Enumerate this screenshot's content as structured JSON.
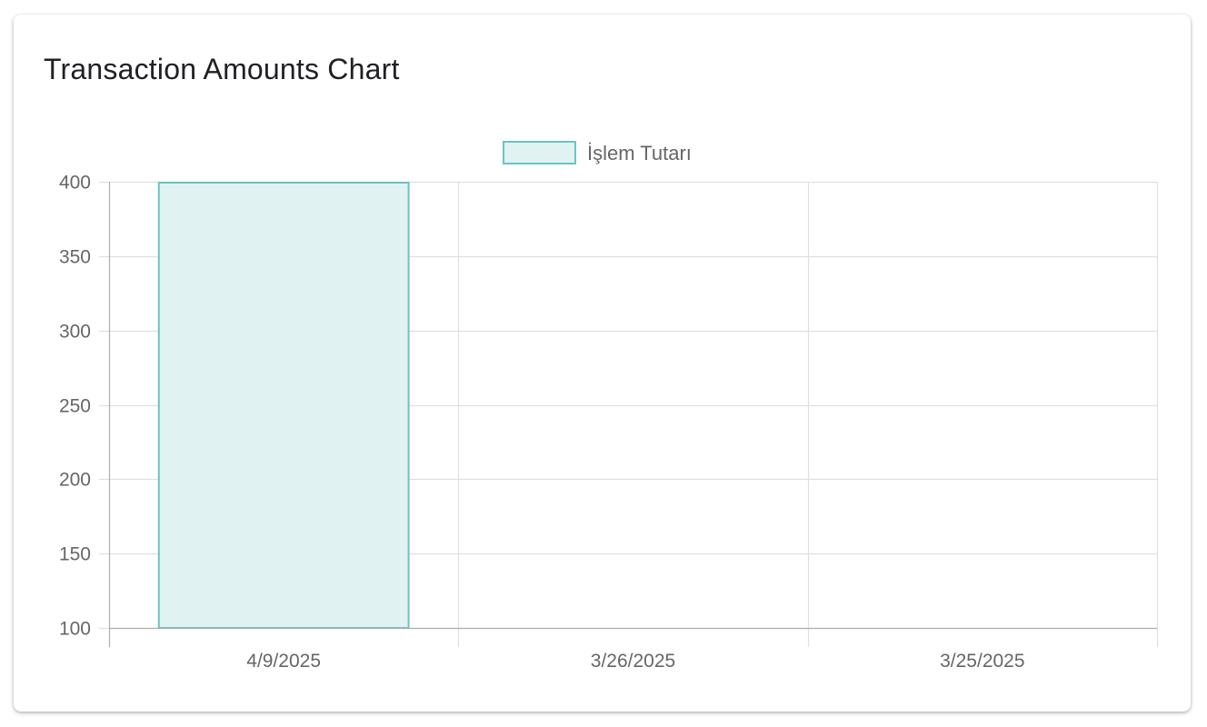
{
  "card": {
    "title": "Transaction Amounts Chart"
  },
  "colors": {
    "bar_fill": "#e0f2f1",
    "bar_stroke": "#6cc3c3",
    "grid": "#e0e0e0",
    "axis": "#b0b0b0",
    "tick_text": "#666666"
  },
  "chart_data": {
    "type": "bar",
    "title": "",
    "xlabel": "",
    "ylabel": "",
    "categories": [
      "4/9/2025",
      "3/26/2025",
      "3/25/2025"
    ],
    "series": [
      {
        "name": "İşlem Tutarı",
        "values": [
          400,
          100,
          100
        ]
      }
    ],
    "ylim": [
      100,
      400
    ],
    "yticks": [
      400,
      350,
      300,
      250,
      200,
      150,
      100
    ],
    "grid": true,
    "legend_position": "top-center"
  }
}
